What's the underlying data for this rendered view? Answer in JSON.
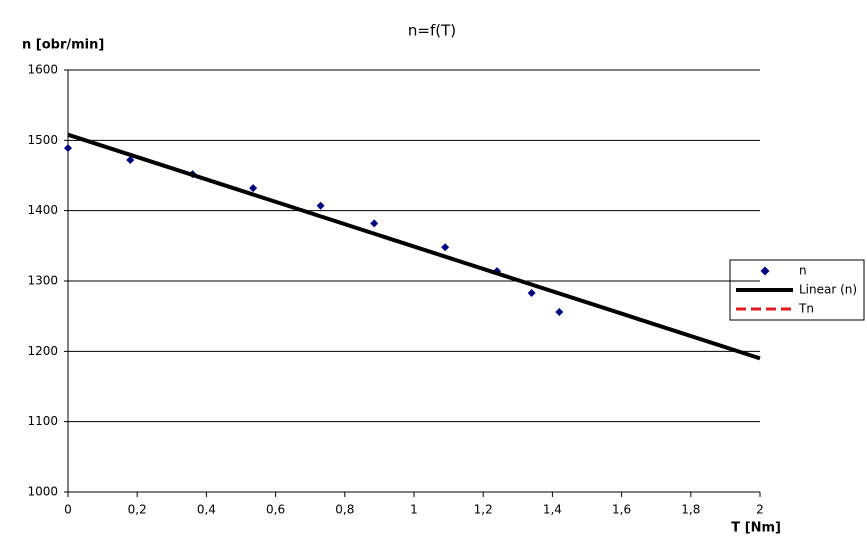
{
  "chart_data": {
    "type": "scatter",
    "title": "n=f(T)",
    "y_label": "n [obr/min]",
    "x_label": "T [Nm]",
    "xlim": [
      0,
      2
    ],
    "ylim": [
      1000,
      1600
    ],
    "xticks": [
      0,
      {
        "value": 0.2,
        "label": "0,2"
      },
      {
        "value": 0.4,
        "label": "0,4"
      },
      {
        "value": 0.6,
        "label": "0,6"
      },
      {
        "value": 0.8,
        "label": "0,8"
      },
      1,
      {
        "value": 1.2,
        "label": "1,2"
      },
      {
        "value": 1.4,
        "label": "1,4"
      },
      {
        "value": 1.6,
        "label": "1,6"
      },
      {
        "value": 1.8,
        "label": "1,8"
      },
      2
    ],
    "yticks": [
      1000,
      1100,
      1200,
      1300,
      1400,
      1500,
      1600
    ],
    "grid": true,
    "legend": "right",
    "series": [
      {
        "name": "n",
        "color": "#000080",
        "marker": "diamond",
        "x": [
          0,
          0.18,
          0.36,
          0.535,
          0.73,
          0.885,
          1.09,
          1.24,
          1.34,
          1.42
        ],
        "values": [
          1489,
          1472,
          1452,
          1432,
          1407,
          1382,
          1348,
          1314,
          1283,
          1256
        ]
      },
      {
        "name": "Linear (n)",
        "color": "#000000",
        "style": "solid",
        "x": [
          0,
          2
        ],
        "values": [
          1508,
          1190
        ]
      },
      {
        "name": "Tn",
        "color": "#e31a1c",
        "style": "dashed",
        "x": [],
        "values": []
      }
    ]
  }
}
